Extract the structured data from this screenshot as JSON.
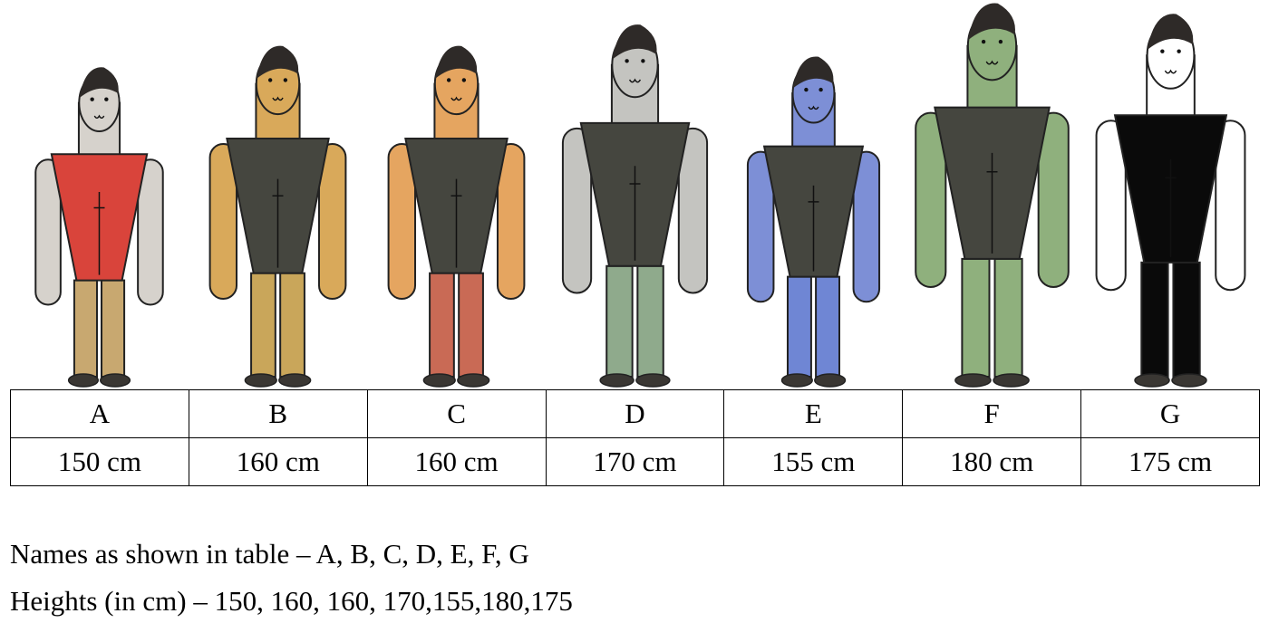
{
  "people": [
    {
      "name": "A",
      "height_label": "150 cm",
      "height_cm": 150,
      "shirt": "#d9443b",
      "skin": "#d6d2cc",
      "pants": "#c8a870"
    },
    {
      "name": "B",
      "height_label": "160 cm",
      "height_cm": 160,
      "shirt": "#45463f",
      "skin": "#d9a95a",
      "pants": "#c9a65a"
    },
    {
      "name": "C",
      "height_label": "160 cm",
      "height_cm": 160,
      "shirt": "#45463f",
      "skin": "#e5a560",
      "pants": "#c96a55"
    },
    {
      "name": "D",
      "height_label": "170 cm",
      "height_cm": 170,
      "shirt": "#45463f",
      "skin": "#c4c4c0",
      "pants": "#8faa8c"
    },
    {
      "name": "E",
      "height_label": "155 cm",
      "height_cm": 155,
      "shirt": "#45463f",
      "skin": "#7d8fd6",
      "pants": "#6f86d4"
    },
    {
      "name": "F",
      "height_label": "180 cm",
      "height_cm": 180,
      "shirt": "#45463f",
      "skin": "#8fb07d",
      "pants": "#8fb07d"
    },
    {
      "name": "G",
      "height_label": "175 cm",
      "height_cm": 175,
      "shirt": "#0a0a0a",
      "skin": "#ffffff",
      "pants": "#0a0a0a"
    }
  ],
  "caption": {
    "names": "Names as shown in table – A, B, C, D, E, F, G",
    "heights": "Heights (in cm) – 150, 160, 160, 170,155,180,175"
  }
}
